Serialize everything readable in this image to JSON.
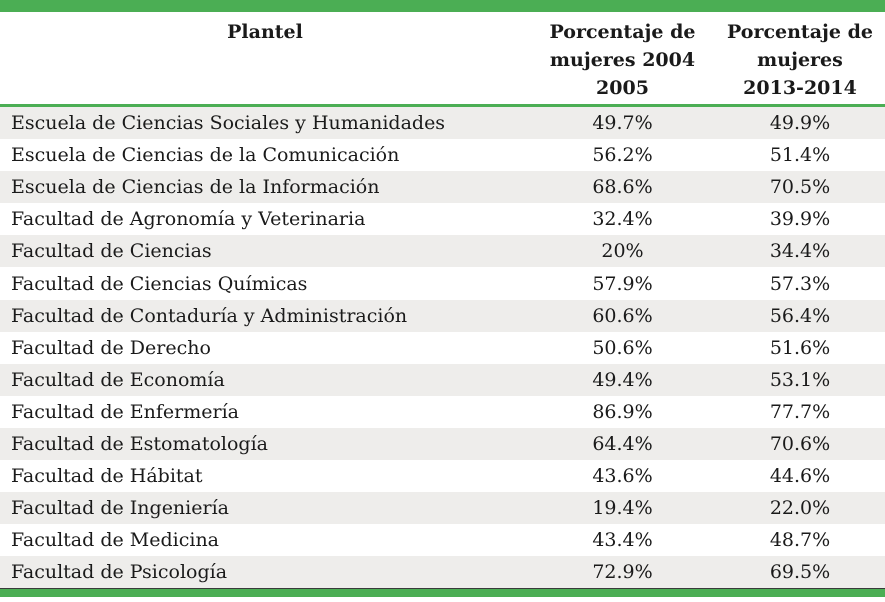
{
  "colors": {
    "accent_green": "#4bae54",
    "row_shade": "#eeedeb",
    "text": "#1a1a1a",
    "background": "#ffffff"
  },
  "chart_data": {
    "type": "table",
    "title": "",
    "columns": [
      {
        "id": "plantel",
        "label": "Plantel",
        "display": "Plantel"
      },
      {
        "id": "pct_2004_2005",
        "label": "Porcentaje de mujeres 2004 2005",
        "display": "Porcentaje de\nmujeres 2004\n2005"
      },
      {
        "id": "pct_2013_2014",
        "label": "Porcentaje de mujeres 2013-2014",
        "display": "Porcentaje de\nmujeres\n2013-2014"
      }
    ],
    "rows": [
      {
        "plantel": "Escuela de Ciencias Sociales y Humanidades",
        "pct_2004_2005": "49.7%",
        "pct_2013_2014": "49.9%"
      },
      {
        "plantel": "Escuela de Ciencias de la Comunicación",
        "pct_2004_2005": "56.2%",
        "pct_2013_2014": "51.4%"
      },
      {
        "plantel": "Escuela de Ciencias de la Información",
        "pct_2004_2005": "68.6%",
        "pct_2013_2014": "70.5%"
      },
      {
        "plantel": "Facultad de Agronomía y Veterinaria",
        "pct_2004_2005": "32.4%",
        "pct_2013_2014": "39.9%"
      },
      {
        "plantel": "Facultad de Ciencias",
        "pct_2004_2005": "20%",
        "pct_2013_2014": "34.4%"
      },
      {
        "plantel": "Facultad de Ciencias Químicas",
        "pct_2004_2005": "57.9%",
        "pct_2013_2014": "57.3%"
      },
      {
        "plantel": "Facultad de Contaduría y Administración",
        "pct_2004_2005": "60.6%",
        "pct_2013_2014": "56.4%"
      },
      {
        "plantel": "Facultad de Derecho",
        "pct_2004_2005": "50.6%",
        "pct_2013_2014": "51.6%"
      },
      {
        "plantel": "Facultad de Economía",
        "pct_2004_2005": "49.4%",
        "pct_2013_2014": "53.1%"
      },
      {
        "plantel": "Facultad de Enfermería",
        "pct_2004_2005": "86.9%",
        "pct_2013_2014": "77.7%"
      },
      {
        "plantel": "Facultad de Estomatología",
        "pct_2004_2005": "64.4%",
        "pct_2013_2014": "70.6%"
      },
      {
        "plantel": "Facultad de Hábitat",
        "pct_2004_2005": "43.6%",
        "pct_2013_2014": "44.6%"
      },
      {
        "plantel": "Facultad de Ingeniería",
        "pct_2004_2005": "19.4%",
        "pct_2013_2014": "22.0%"
      },
      {
        "plantel": "Facultad de Medicina",
        "pct_2004_2005": "43.4%",
        "pct_2013_2014": "48.7%"
      },
      {
        "plantel": "Facultad de Psicología",
        "pct_2004_2005": "72.9%",
        "pct_2013_2014": "69.5%"
      }
    ],
    "layout": {
      "striped": true,
      "first_row_shaded": true,
      "header_alignment": "center",
      "value_alignment": "center"
    }
  }
}
